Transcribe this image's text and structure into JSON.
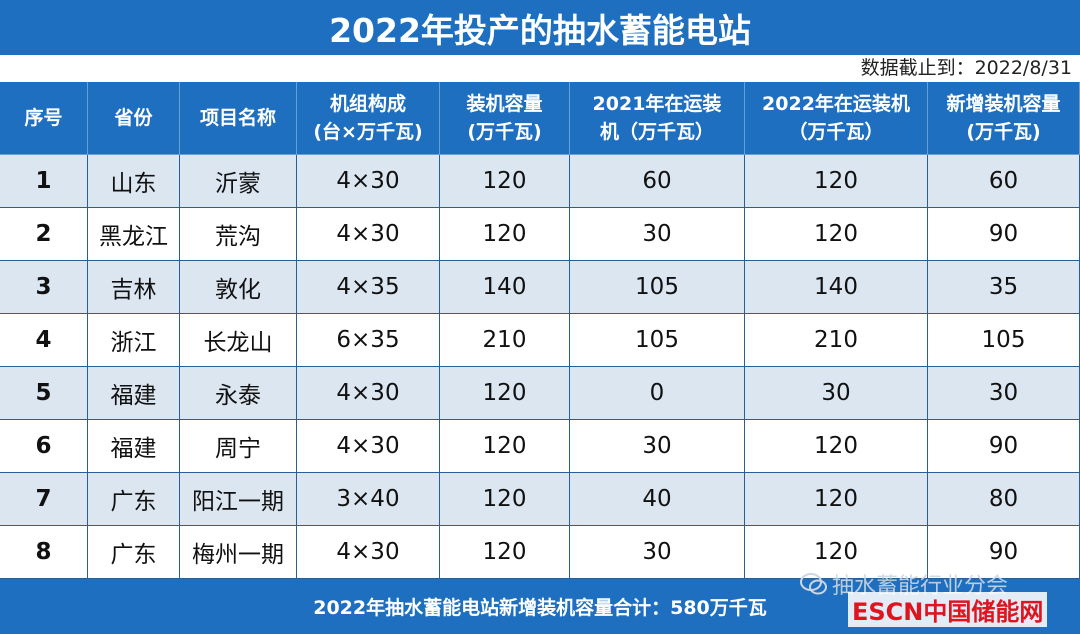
{
  "title": "2022年投产的抽水蓄能电站",
  "date_note": "数据截止到：2022/8/31",
  "table": {
    "header": [
      [
        "序号"
      ],
      [
        "省份"
      ],
      [
        "项目名称"
      ],
      [
        "机组构成",
        "(台×万千瓦)"
      ],
      [
        "装机容量",
        "(万千瓦)"
      ],
      [
        "2021年在运装",
        "机（万千瓦）"
      ],
      [
        "2022年在运装机",
        "（万千瓦）"
      ],
      [
        "新增装机容量",
        "(万千瓦)"
      ]
    ],
    "rows": [
      [
        1,
        "山东",
        "沂蒙",
        "4×30",
        120,
        60,
        120,
        60
      ],
      [
        2,
        "黑龙江",
        "荒沟",
        "4×30",
        120,
        30,
        120,
        90
      ],
      [
        3,
        "吉林",
        "敦化",
        "4×35",
        140,
        105,
        140,
        35
      ],
      [
        4,
        "浙江",
        "长龙山",
        "6×35",
        210,
        105,
        210,
        105
      ],
      [
        5,
        "福建",
        "永泰",
        "4×30",
        120,
        0,
        30,
        30
      ],
      [
        6,
        "福建",
        "周宁",
        "4×30",
        120,
        30,
        120,
        90
      ],
      [
        7,
        "广东",
        "阳江一期",
        "3×40",
        120,
        40,
        120,
        80
      ],
      [
        8,
        "广东",
        "梅州一期",
        "4×30",
        120,
        30,
        120,
        90
      ]
    ]
  },
  "footer": "2022年抽水蓄能电站新增装机容量合计：580万千瓦",
  "watermark": {
    "association": "抽水蓄能行业分会",
    "brand": "ESCN",
    "site": "中国储能网"
  }
}
